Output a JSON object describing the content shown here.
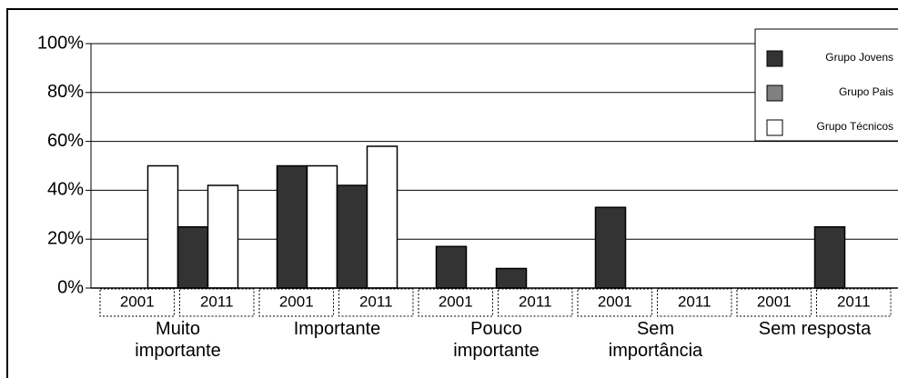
{
  "chart_data": {
    "type": "bar",
    "categories": [
      "Muito\nimportante",
      "Importante",
      "Pouco\nimportante",
      "Sem\nimportância",
      "Sem resposta"
    ],
    "sub_categories": [
      "2001",
      "2011"
    ],
    "series": [
      {
        "name": "Grupo Jovens",
        "color": "#333333",
        "values": [
          [
            0,
            25
          ],
          [
            50,
            42
          ],
          [
            17,
            8
          ],
          [
            33,
            0
          ],
          [
            0,
            25
          ]
        ]
      },
      {
        "name": "Grupo Pais",
        "color": "#808080",
        "values": [
          [
            null,
            null
          ],
          [
            null,
            null
          ],
          [
            null,
            null
          ],
          [
            null,
            null
          ],
          [
            null,
            null
          ]
        ]
      },
      {
        "name": "Grupo Técnicos",
        "color": "#ffffff",
        "values": [
          [
            50,
            42
          ],
          [
            50,
            58
          ],
          [
            0,
            0
          ],
          [
            0,
            0
          ],
          [
            0,
            0
          ]
        ]
      }
    ],
    "ylim": [
      0,
      100
    ],
    "yticks": [
      {
        "value": 0,
        "label": "0%"
      },
      {
        "value": 20,
        "label": "20%"
      },
      {
        "value": 40,
        "label": "40%"
      },
      {
        "value": 60,
        "label": "60%"
      },
      {
        "value": 80,
        "label": "80%"
      },
      {
        "value": 100,
        "label": "100%"
      }
    ],
    "grid": true,
    "legend": "upper right"
  }
}
